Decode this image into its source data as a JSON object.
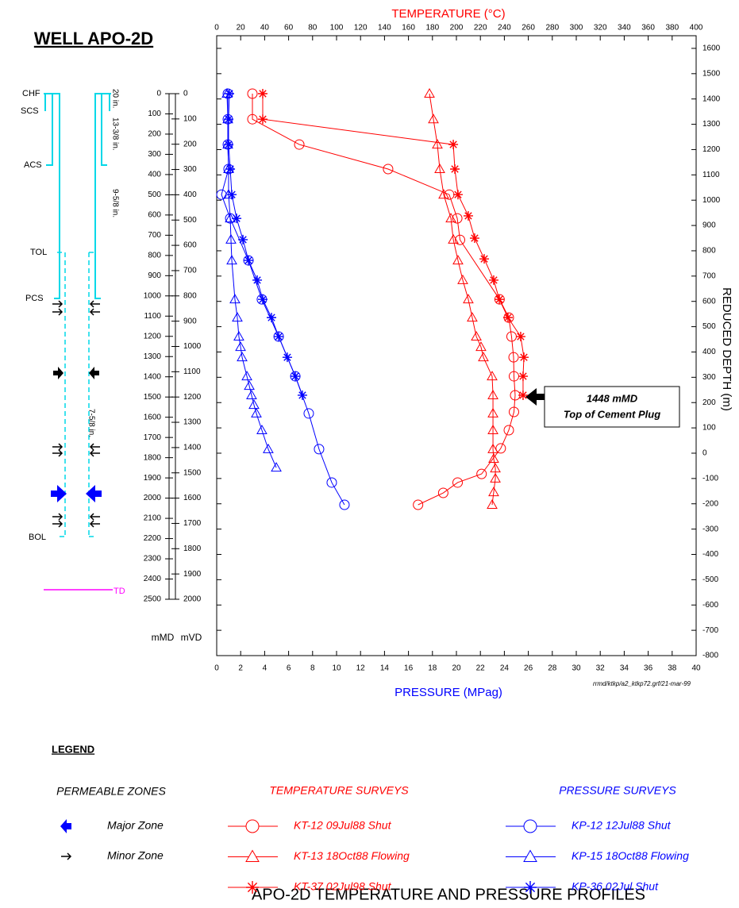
{
  "chart_data": {
    "type": "profile",
    "title": "WELL APO-2D",
    "caption": "APO-2D TEMPERATURE AND PRESSURE PROFILES",
    "x_top_label": "TEMPERATURE (°C)",
    "xlim_top": [
      0,
      400
    ],
    "xticks_top": [
      0,
      20,
      40,
      60,
      80,
      100,
      120,
      140,
      160,
      180,
      200,
      220,
      240,
      260,
      280,
      300,
      320,
      340,
      360,
      380,
      400
    ],
    "x_label": "PRESSURE (MPag)",
    "xlim": [
      0,
      40
    ],
    "xticks": [
      0,
      2,
      4,
      6,
      8,
      10,
      12,
      14,
      16,
      18,
      20,
      22,
      24,
      26,
      28,
      30,
      32,
      34,
      36,
      38,
      40
    ],
    "y_label": "REDUCED DEPTH (m)",
    "ylim": [
      -800,
      1650
    ],
    "yticks": [
      1600,
      1500,
      1400,
      1300,
      1200,
      1100,
      1000,
      900,
      800,
      700,
      600,
      500,
      400,
      300,
      200,
      100,
      0,
      -100,
      -200,
      -300,
      -400,
      -500,
      -600,
      -700,
      -800
    ],
    "md_axis": {
      "label": "mMD",
      "lim": [
        0,
        2500
      ],
      "ticks": [
        0,
        100,
        200,
        300,
        400,
        500,
        600,
        700,
        800,
        900,
        1000,
        1100,
        1200,
        1300,
        1400,
        1500,
        1600,
        1700,
        1800,
        1900,
        2000,
        2100,
        2200,
        2300,
        2400,
        2500
      ]
    },
    "vd_axis": {
      "label": "mVD",
      "lim": [
        0,
        2000
      ],
      "ticks": [
        0,
        100,
        200,
        300,
        400,
        500,
        600,
        700,
        800,
        900,
        1000,
        1100,
        1200,
        1300,
        1400,
        1500,
        1600,
        1700,
        1800,
        1900,
        2000
      ]
    },
    "note": "rrmd/ktkp/a2_ktkp72.grf/21-mar-99",
    "annotation": [
      "1448 mMD",
      "Top of Cement Plug"
    ],
    "series": [
      {
        "name": "KT-12 09Jul88 Shut",
        "color": "#ff0000",
        "marker": "circle",
        "axis": "top",
        "values": [
          29.8,
          29.8,
          68.9,
          143,
          194,
          200.7,
          203,
          236,
          243.7,
          246,
          247.7,
          248,
          249,
          248,
          243.7,
          237,
          221,
          201,
          189,
          168
        ],
        "depth": [
          1421,
          1320,
          1220,
          1123,
          1022,
          928,
          843,
          608,
          536,
          461,
          379,
          304,
          229,
          163,
          91,
          19,
          -82,
          -116,
          -157,
          -204
        ]
      },
      {
        "name": "KT-13 18Oct88 Flowing",
        "color": "#ff0000",
        "marker": "triangle",
        "axis": "top",
        "values": [
          177.5,
          180.8,
          184.1,
          186.1,
          189.4,
          195.4,
          197.4,
          201.3,
          205.3,
          209.9,
          213.2,
          216.6,
          220.5,
          222.5,
          229.8,
          230.5,
          230.5,
          230.5,
          230.5,
          231.1,
          232.5,
          232.5,
          231.1,
          229.8
        ],
        "depth": [
          1421,
          1320,
          1220,
          1123,
          1022,
          928,
          844,
          762,
          684,
          608,
          536,
          461,
          420,
          379,
          304,
          229,
          157,
          91,
          16,
          -22,
          -60,
          -100,
          -154,
          -204
        ]
      },
      {
        "name": "KT-37 02Jul98 Shut",
        "color": "#ff0000",
        "marker": "star",
        "axis": "top",
        "values": [
          38.4,
          38.4,
          197.4,
          198.7,
          201.3,
          209.9,
          215.2,
          223.2,
          231.1,
          235.8,
          243,
          253.6,
          256.3,
          255.6,
          255.6
        ],
        "depth": [
          1421,
          1320,
          1220,
          1123,
          1022,
          938,
          850,
          768,
          684,
          608,
          536,
          461,
          379,
          304,
          229
        ]
      },
      {
        "name": "KP-12 12Jul88 Shut",
        "color": "#0000ff",
        "marker": "circle",
        "axis": "bottom",
        "values": [
          0.93,
          0.93,
          0.93,
          0.99,
          0.4,
          1.13,
          2.65,
          3.77,
          5.17,
          6.56,
          7.68,
          8.54,
          9.6,
          10.66
        ],
        "depth": [
          1421,
          1320,
          1220,
          1123,
          1022,
          928,
          762,
          608,
          461,
          304,
          157,
          16,
          -116,
          -204
        ]
      },
      {
        "name": "KP-15 18Oct88 Flowing",
        "color": "#0000ff",
        "marker": "triangle",
        "axis": "bottom",
        "values": [
          0.86,
          0.93,
          0.93,
          0.99,
          0.99,
          1.13,
          1.19,
          1.26,
          1.52,
          1.72,
          1.85,
          1.99,
          2.12,
          2.52,
          2.72,
          2.91,
          3.11,
          3.31,
          3.77,
          4.3,
          4.97
        ],
        "depth": [
          1421,
          1320,
          1220,
          1123,
          1022,
          928,
          844,
          762,
          608,
          536,
          461,
          420,
          379,
          304,
          266,
          229,
          191,
          157,
          91,
          16,
          -57
        ]
      },
      {
        "name": "KP-36 02Jul Shut",
        "color": "#0000ff",
        "marker": "star",
        "axis": "bottom",
        "values": [
          1.06,
          0.99,
          0.99,
          1.13,
          1.26,
          1.66,
          2.19,
          2.65,
          3.38,
          3.84,
          4.57,
          5.17,
          5.89,
          6.56,
          7.15
        ],
        "depth": [
          1421,
          1320,
          1220,
          1123,
          1022,
          928,
          844,
          762,
          684,
          608,
          536,
          461,
          379,
          304,
          229
        ]
      }
    ],
    "legend": {
      "title": "LEGEND",
      "zones_heading": "PERMEABLE ZONES",
      "major": "Major Zone",
      "minor": "Minor Zone",
      "temperature_heading": "TEMPERATURE SURVEYS",
      "pressure_heading": "PRESSURE SURVEYS"
    }
  },
  "well": {
    "casing_labels": [
      "CHF",
      "SCS",
      "ACS",
      "TOL",
      "PCS",
      "BOL"
    ],
    "td": "TD",
    "sizes": [
      "20 in.",
      "13-3/8 in.",
      "9-5/8 in.",
      "7-5/8 in."
    ]
  }
}
